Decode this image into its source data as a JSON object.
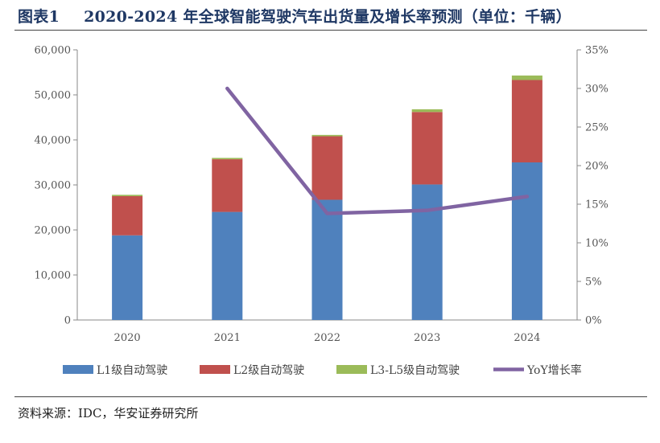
{
  "header": {
    "figure_label": "图表1",
    "title": "2020-2024 年全球智能驾驶汽车出货量及增长率预测（单位：千辆）"
  },
  "footer": {
    "source": "资料来源：IDC，华安证券研究所"
  },
  "chart_data": {
    "type": "bar",
    "stacked": true,
    "categories": [
      "2020",
      "2021",
      "2022",
      "2023",
      "2024"
    ],
    "series": [
      {
        "name": "L1级自动驾驶",
        "type": "bar",
        "axis": "left",
        "color": "#4f81bd",
        "values": [
          18800,
          24000,
          26700,
          30100,
          35000
        ]
      },
      {
        "name": "L2级自动驾驶",
        "type": "bar",
        "axis": "left",
        "color": "#c0504d",
        "values": [
          8700,
          11700,
          14100,
          16100,
          18300
        ]
      },
      {
        "name": "L3-L5级自动驾驶",
        "type": "bar",
        "axis": "left",
        "color": "#9bbb59",
        "values": [
          300,
          300,
          300,
          600,
          1000
        ]
      },
      {
        "name": "YoY增长率",
        "type": "line",
        "axis": "right",
        "color": "#8064a2",
        "values": [
          null,
          30.0,
          13.8,
          14.2,
          16.0
        ]
      }
    ],
    "y_left": {
      "min": 0,
      "max": 60000,
      "ticks": [
        "0",
        "10,000",
        "20,000",
        "30,000",
        "40,000",
        "50,000",
        "60,000"
      ]
    },
    "y_right": {
      "min": 0,
      "max": 35,
      "unit": "%",
      "ticks": [
        "0%",
        "5%",
        "10%",
        "15%",
        "20%",
        "25%",
        "30%",
        "35%"
      ]
    },
    "legend_position": "bottom",
    "grid": false
  }
}
